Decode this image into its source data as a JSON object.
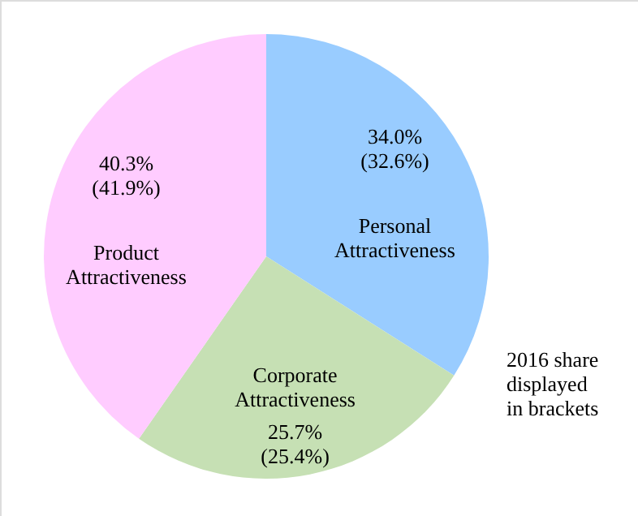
{
  "chart_data": {
    "type": "pie",
    "categories": [
      "Personal\nAttractiveness",
      "Corporate\nAttractiveness",
      "Product\nAttractiveness"
    ],
    "values": [
      34.0,
      25.7,
      40.3
    ],
    "colors": [
      "#99ccff",
      "#c6e0b4",
      "#ffccff"
    ],
    "value_labels": [
      "34.0%\n(32.6%)",
      "25.7%\n(25.4%)",
      "40.3%\n(41.9%)"
    ],
    "annotations": [
      "2016  share\ndisplayed\nin brackets"
    ]
  }
}
